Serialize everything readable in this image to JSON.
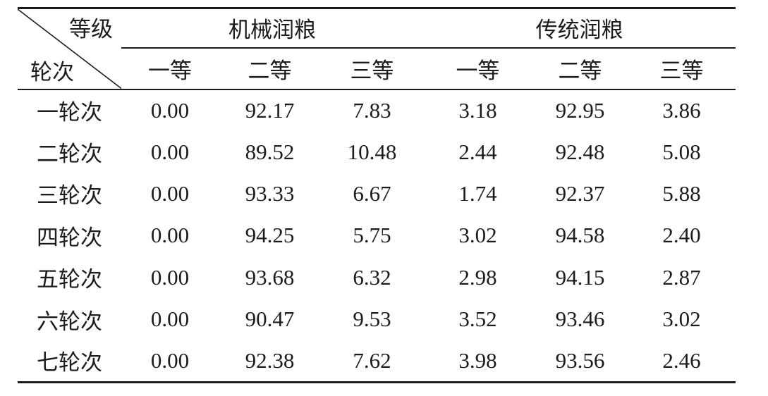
{
  "table": {
    "corner": {
      "top_label": "等级",
      "bottom_label": "轮次"
    },
    "groups": [
      {
        "label": "机械润粮",
        "columns": [
          "一等",
          "二等",
          "三等"
        ]
      },
      {
        "label": "传统润粮",
        "columns": [
          "一等",
          "二等",
          "三等"
        ]
      }
    ],
    "rows": [
      {
        "label": "一轮次",
        "values": [
          "0.00",
          "92.17",
          "7.83",
          "3.18",
          "92.95",
          "3.86"
        ]
      },
      {
        "label": "二轮次",
        "values": [
          "0.00",
          "89.52",
          "10.48",
          "2.44",
          "92.48",
          "5.08"
        ]
      },
      {
        "label": "三轮次",
        "values": [
          "0.00",
          "93.33",
          "6.67",
          "1.74",
          "92.37",
          "5.88"
        ]
      },
      {
        "label": "四轮次",
        "values": [
          "0.00",
          "94.25",
          "5.75",
          "3.02",
          "94.58",
          "2.40"
        ]
      },
      {
        "label": "五轮次",
        "values": [
          "0.00",
          "93.68",
          "6.32",
          "2.98",
          "94.15",
          "2.87"
        ]
      },
      {
        "label": "六轮次",
        "values": [
          "0.00",
          "90.47",
          "9.53",
          "3.52",
          "93.46",
          "3.02"
        ]
      },
      {
        "label": "七轮次",
        "values": [
          "0.00",
          "92.38",
          "7.62",
          "3.98",
          "93.56",
          "2.46"
        ]
      }
    ],
    "colors": {
      "text": "#1c1c1c",
      "line": "#1c1c1c",
      "background": "#ffffff"
    }
  },
  "chart_data": {
    "type": "table",
    "corner_labels": [
      "等级",
      "轮次"
    ],
    "column_groups": [
      "机械润粮",
      "传统润粮"
    ],
    "columns": [
      "机械润粮 一等",
      "机械润粮 二等",
      "机械润粮 三等",
      "传统润粮 一等",
      "传统润粮 二等",
      "传统润粮 三等"
    ],
    "row_labels": [
      "一轮次",
      "二轮次",
      "三轮次",
      "四轮次",
      "五轮次",
      "六轮次",
      "七轮次"
    ],
    "values": [
      [
        0.0,
        92.17,
        7.83,
        3.18,
        92.95,
        3.86
      ],
      [
        0.0,
        89.52,
        10.48,
        2.44,
        92.48,
        5.08
      ],
      [
        0.0,
        93.33,
        6.67,
        1.74,
        92.37,
        5.88
      ],
      [
        0.0,
        94.25,
        5.75,
        3.02,
        94.58,
        2.4
      ],
      [
        0.0,
        93.68,
        6.32,
        2.98,
        94.15,
        2.87
      ],
      [
        0.0,
        90.47,
        9.53,
        3.52,
        93.46,
        3.02
      ],
      [
        0.0,
        92.38,
        7.62,
        3.98,
        93.56,
        2.46
      ]
    ]
  }
}
